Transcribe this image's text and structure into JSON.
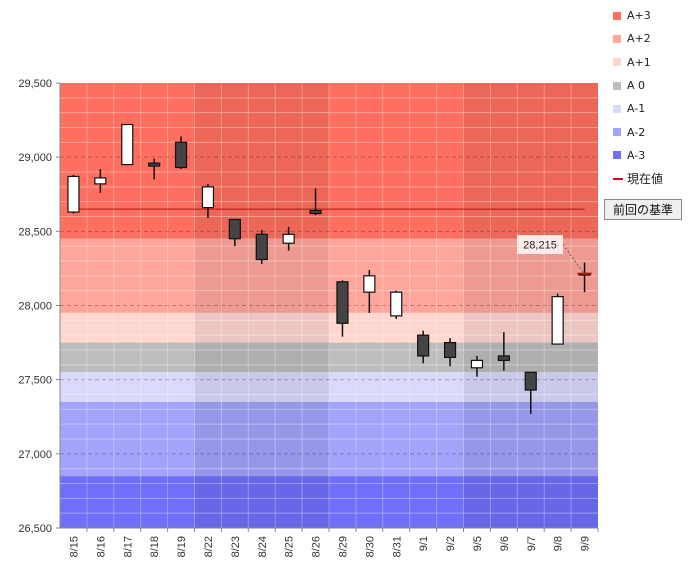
{
  "legend": {
    "items": [
      {
        "label": "A+3",
        "color": "#ff6f5f"
      },
      {
        "label": "A+2",
        "color": "#ffa69c"
      },
      {
        "label": "A+1",
        "color": "#ffd6d0"
      },
      {
        "label": "A 0",
        "color": "#bdbdbd"
      },
      {
        "label": "A-1",
        "color": "#d9d9fb"
      },
      {
        "label": "A-2",
        "color": "#a3a3fb"
      },
      {
        "label": "A-3",
        "color": "#6f6ff9"
      }
    ],
    "current_value_label": "現在値",
    "current_value_color": "#c01010"
  },
  "reference_button": {
    "label": "前回の基準"
  },
  "chart_data": {
    "type": "candlestick",
    "ylim": [
      26500,
      29500
    ],
    "yticks": [
      26500,
      27000,
      27500,
      28000,
      28500,
      29000,
      29500
    ],
    "ytick_labels": [
      "26,500",
      "27,000",
      "27,500",
      "28,000",
      "28,500",
      "29,000",
      "29,500"
    ],
    "grid": true,
    "legend_position": "right",
    "categories": [
      "8/15",
      "8/16",
      "8/17",
      "8/18",
      "8/19",
      "8/22",
      "8/23",
      "8/24",
      "8/25",
      "8/26",
      "8/29",
      "8/30",
      "8/31",
      "9/1",
      "9/2",
      "9/5",
      "9/6",
      "9/7",
      "9/8",
      "9/9"
    ],
    "candles": [
      {
        "open": 28630,
        "high": 28880,
        "low": 28620,
        "close": 28870
      },
      {
        "open": 28820,
        "high": 28920,
        "low": 28760,
        "close": 28860
      },
      {
        "open": 28950,
        "high": 29220,
        "low": 28950,
        "close": 29220
      },
      {
        "open": 28960,
        "high": 28990,
        "low": 28850,
        "close": 28940
      },
      {
        "open": 29100,
        "high": 29140,
        "low": 28920,
        "close": 28930
      },
      {
        "open": 28660,
        "high": 28820,
        "low": 28590,
        "close": 28800
      },
      {
        "open": 28580,
        "high": 28580,
        "low": 28400,
        "close": 28450
      },
      {
        "open": 28480,
        "high": 28510,
        "low": 28280,
        "close": 28310
      },
      {
        "open": 28420,
        "high": 28530,
        "low": 28370,
        "close": 28480
      },
      {
        "open": 28640,
        "high": 28790,
        "low": 28610,
        "close": 28620
      },
      {
        "open": 28160,
        "high": 28170,
        "low": 27790,
        "close": 27880
      },
      {
        "open": 28090,
        "high": 28240,
        "low": 27950,
        "close": 28200
      },
      {
        "open": 27930,
        "high": 28100,
        "low": 27910,
        "close": 28090
      },
      {
        "open": 27800,
        "high": 27830,
        "low": 27610,
        "close": 27660
      },
      {
        "open": 27750,
        "high": 27780,
        "low": 27590,
        "close": 27650
      },
      {
        "open": 27580,
        "high": 27660,
        "low": 27520,
        "close": 27630
      },
      {
        "open": 27660,
        "high": 27820,
        "low": 27560,
        "close": 27630
      },
      {
        "open": 27550,
        "high": 27550,
        "low": 27270,
        "close": 27430
      },
      {
        "open": 27740,
        "high": 28080,
        "low": 27740,
        "close": 28060
      },
      {
        "open": 28215,
        "high": 28290,
        "low": 28090,
        "close": 28215
      }
    ],
    "bands": [
      {
        "name": "A+3",
        "from": 28450,
        "to": 29500
      },
      {
        "name": "A+2",
        "from": 27950,
        "to": 28450
      },
      {
        "name": "A+1",
        "from": 27750,
        "to": 27950
      },
      {
        "name": "A 0",
        "from": 27550,
        "to": 27750
      },
      {
        "name": "A-1",
        "from": 27350,
        "to": 27550
      },
      {
        "name": "A-2",
        "from": 26850,
        "to": 27350
      },
      {
        "name": "A-3",
        "from": 26500,
        "to": 26850
      }
    ],
    "weeks": [
      {
        "from": "8/15",
        "to": "8/19"
      },
      {
        "from": "8/22",
        "to": "8/26"
      },
      {
        "from": "8/29",
        "to": "9/2"
      },
      {
        "from": "9/5",
        "to": "9/9"
      }
    ],
    "reference_line": 28650,
    "current_value": 28215,
    "current_value_label": "28,215"
  }
}
